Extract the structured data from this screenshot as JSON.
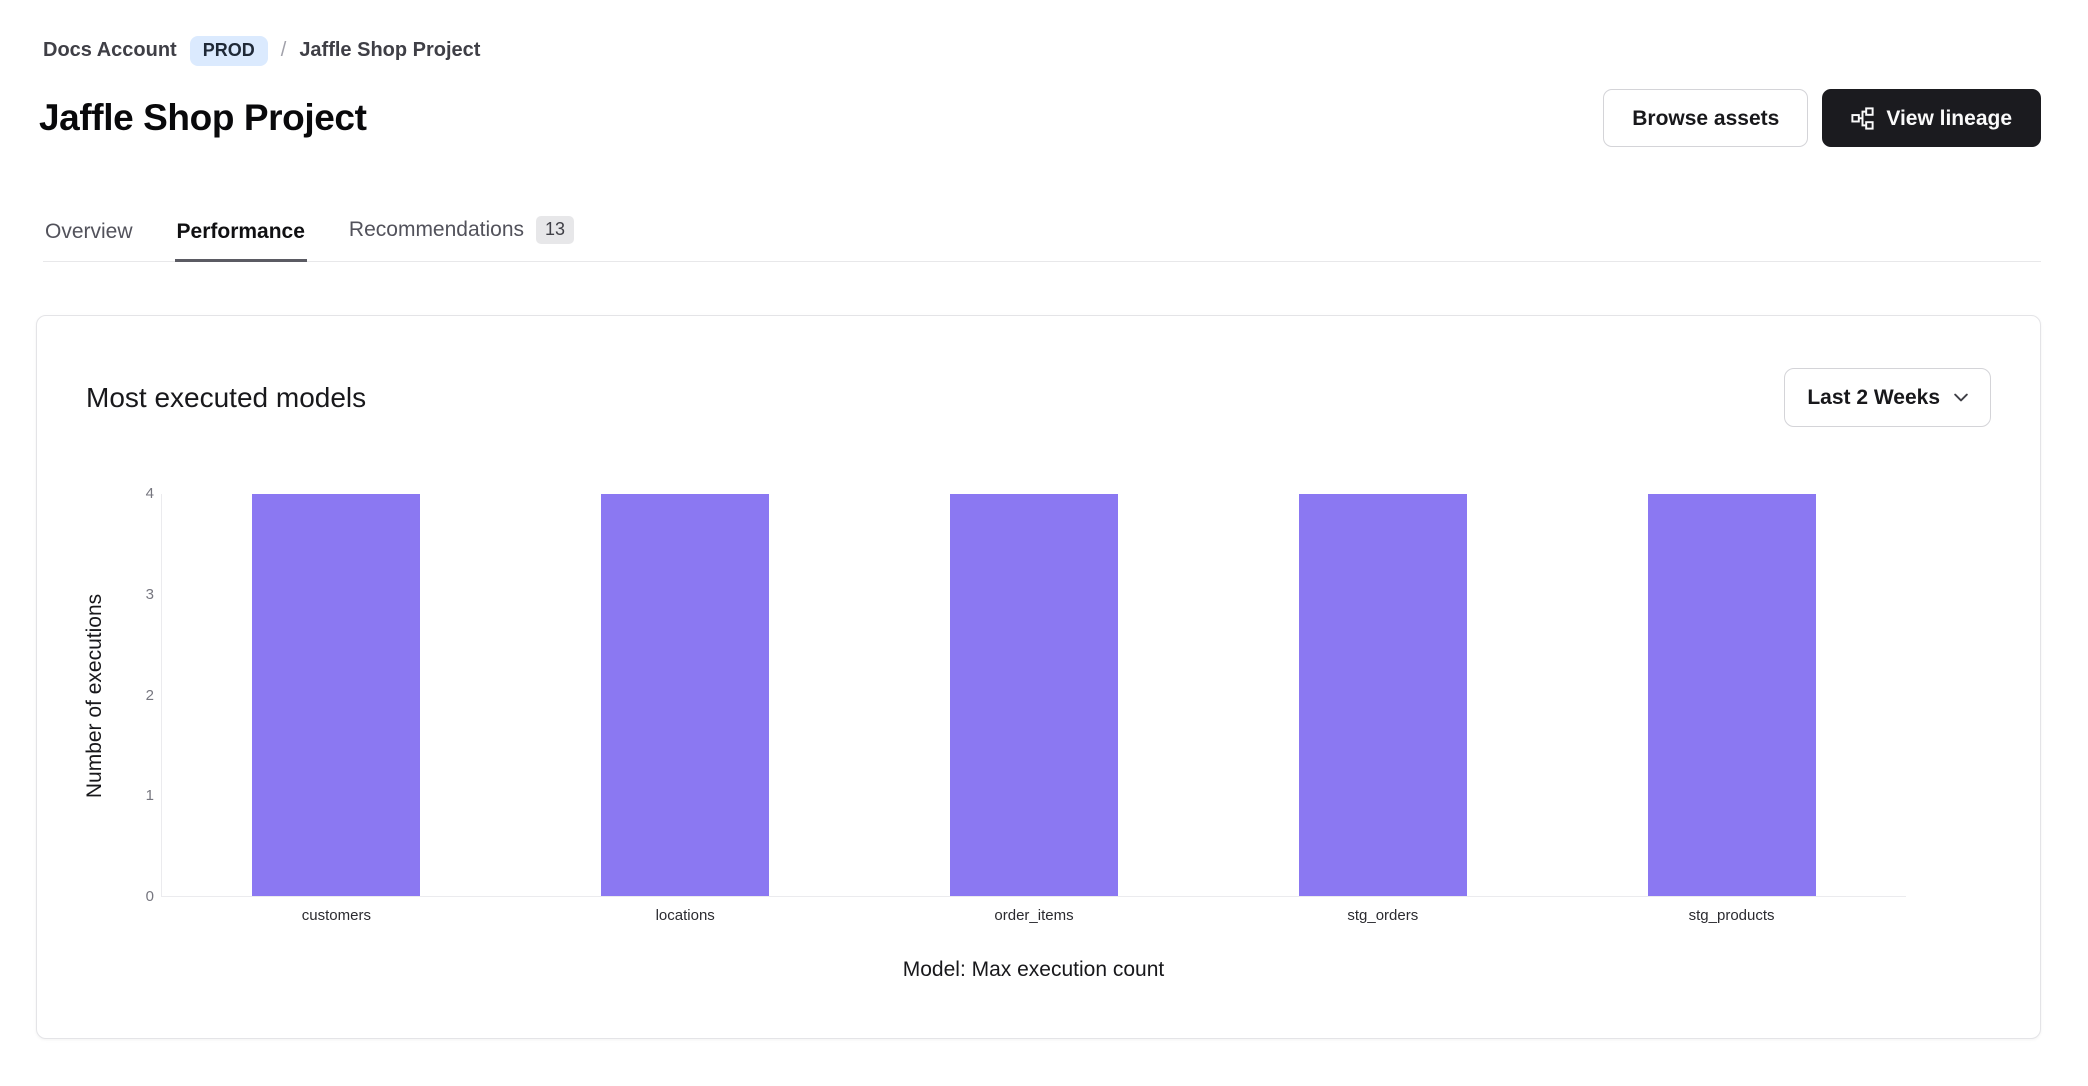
{
  "breadcrumb": {
    "account": "Docs Account",
    "env_badge": "PROD",
    "separator": "/",
    "project": "Jaffle Shop Project"
  },
  "header": {
    "title": "Jaffle Shop Project",
    "browse_assets_label": "Browse assets",
    "view_lineage_label": "View lineage"
  },
  "tabs": [
    {
      "label": "Overview",
      "active": false
    },
    {
      "label": "Performance",
      "active": true
    },
    {
      "label": "Recommendations",
      "active": false,
      "badge": "13"
    }
  ],
  "card": {
    "heading": "Most executed models",
    "range_selector_value": "Last 2 Weeks"
  },
  "chart_data": {
    "type": "bar",
    "categories": [
      "customers",
      "locations",
      "order_items",
      "stg_orders",
      "stg_products"
    ],
    "values": [
      4,
      4,
      4,
      4,
      4
    ],
    "title": "Most executed models",
    "xlabel": "Model: Max execution count",
    "ylabel": "Number of executions",
    "ylim": [
      0,
      4
    ],
    "yticks": [
      0,
      1,
      2,
      3,
      4
    ],
    "bar_color": "#8b78f2",
    "grid": false,
    "legend": false
  },
  "colors": {
    "accent_purple": "#8b78f2",
    "prod_badge_bg": "#dbeafe",
    "dark_button_bg": "#1b1b1f",
    "axis_line": "#ebebee",
    "tick_text": "#76767f"
  }
}
